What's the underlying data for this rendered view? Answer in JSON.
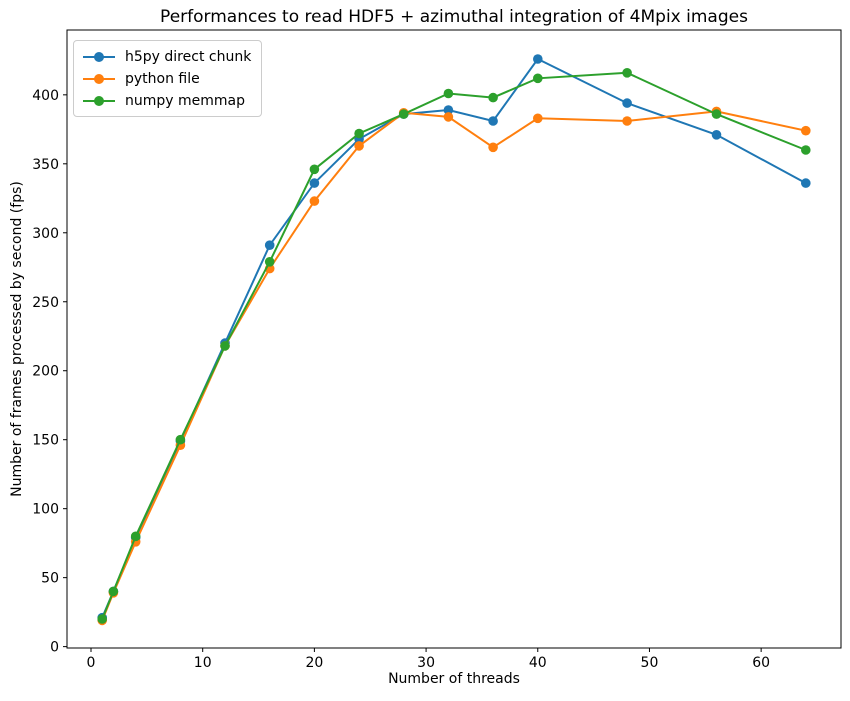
{
  "figure": {
    "background": "#ffffff"
  },
  "chart_data": {
    "type": "line",
    "title": "Performances to read HDF5 + azimuthal integration of 4Mpix images",
    "xlabel": "Number of threads",
    "ylabel": "Number of frames processed by second (fps)",
    "grid": false,
    "legend_position": "upper-left",
    "marker": "circle",
    "xlim": [
      -2.15,
      67.15
    ],
    "ylim": [
      -1,
      447
    ],
    "xticks": [
      0,
      10,
      20,
      30,
      40,
      50,
      60
    ],
    "yticks": [
      0,
      50,
      100,
      150,
      200,
      250,
      300,
      350,
      400
    ],
    "x": [
      1,
      2,
      4,
      8,
      12,
      16,
      20,
      24,
      28,
      32,
      36,
      40,
      48,
      56,
      64
    ],
    "series": [
      {
        "name": "h5py direct chunk",
        "color": "#1f77b4",
        "values": [
          21,
          40,
          79,
          149,
          220,
          291,
          336,
          368,
          386,
          389,
          381,
          426,
          394,
          371,
          336
        ]
      },
      {
        "name": "python file",
        "color": "#ff7f0e",
        "values": [
          19,
          39,
          76,
          146,
          218,
          274,
          323,
          363,
          387,
          384,
          362,
          383,
          381,
          388,
          374
        ]
      },
      {
        "name": "numpy memmap",
        "color": "#2ca02c",
        "values": [
          20,
          40,
          80,
          150,
          218,
          279,
          346,
          372,
          386,
          401,
          398,
          412,
          416,
          386,
          360
        ]
      }
    ]
  }
}
